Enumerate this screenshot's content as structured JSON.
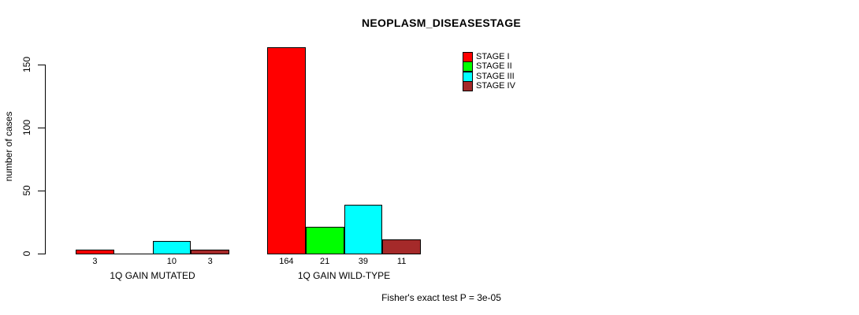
{
  "chart_data": {
    "type": "bar",
    "title": "NEOPLASM_DISEASESTAGE",
    "ylabel": "number of cases",
    "xlabel": "",
    "yticks": [
      0,
      50,
      100,
      150
    ],
    "ylim": [
      0,
      170
    ],
    "grid": false,
    "legend_position": "top-right",
    "categories": [
      "1Q GAIN MUTATED",
      "1Q GAIN WILD-TYPE"
    ],
    "series": [
      {
        "name": "STAGE I",
        "color": "#FF0000",
        "values": [
          3,
          164
        ]
      },
      {
        "name": "STAGE II",
        "color": "#00FF00",
        "values": [
          0,
          21
        ]
      },
      {
        "name": "STAGE III",
        "color": "#00FFFF",
        "values": [
          10,
          39
        ]
      },
      {
        "name": "STAGE IV",
        "color": "#A52A2A",
        "values": [
          3,
          11
        ]
      }
    ],
    "bar_value_labels": [
      [
        "3",
        "",
        "10",
        "3"
      ],
      [
        "164",
        "21",
        "39",
        "11"
      ]
    ],
    "footnote": "Fisher's exact test P = 3e-05"
  }
}
